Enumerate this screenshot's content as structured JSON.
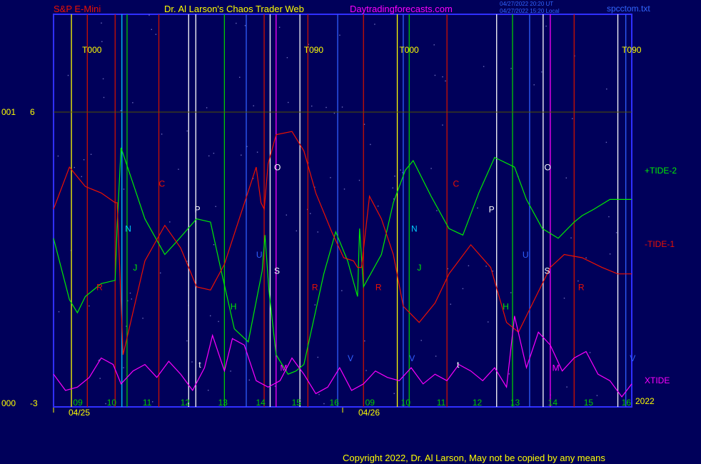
{
  "header": {
    "instrument": "S&P E-Mini",
    "title": "Dr. Al Larson's Chaos Trader Web",
    "website": "Daytradingforecasts.com",
    "timestamp_1": "04/27/2022 20:20 UT",
    "timestamp_2": "04/27/2022 15:20 Local",
    "filename": "spcctom.txt"
  },
  "footer": {
    "copyright": "Copyright 2022, Dr. Al Larson, May not be copied by any means"
  },
  "colors": {
    "background": "#00005a",
    "frame": "#3030ff",
    "tide2": "#00ee00",
    "tide1": "#ee1100",
    "xtide": "#ff00ff",
    "text_yellow": "#ffff00",
    "text_white": "#ffffff",
    "text_red": "#ee1100",
    "text_magenta": "#ff00ff"
  },
  "chart_data": {
    "type": "line",
    "y_axis_left": {
      "labels": [
        {
          "outer": "001",
          "inner": "6",
          "value": 6
        },
        {
          "outer": "000",
          "inner": "-3",
          "value": -3
        }
      ],
      "ylim": [
        -3,
        6
      ]
    },
    "x_axis": {
      "date_labels": [
        "04/25",
        "04/26"
      ],
      "year_label": "2022",
      "hour_labels": [
        {
          "label": "09",
          "x": 0.6
        },
        {
          "label": "10",
          "x": 1.45
        },
        {
          "label": "11",
          "x": 2.35
        },
        {
          "label": "12",
          "x": 3.3
        },
        {
          "label": "13",
          "x": 4.25
        },
        {
          "label": "14",
          "x": 5.2
        },
        {
          "label": "15",
          "x": 6.1
        },
        {
          "label": "16",
          "x": 7.05
        },
        {
          "label": "09",
          "x": 7.95
        },
        {
          "label": "10",
          "x": 8.85
        },
        {
          "label": "11",
          "x": 9.75
        },
        {
          "label": "12",
          "x": 10.65
        },
        {
          "label": "13",
          "x": 11.6
        },
        {
          "label": "14",
          "x": 12.55
        },
        {
          "label": "15",
          "x": 13.45
        },
        {
          "label": "16",
          "x": 14.4
        }
      ],
      "xlim": [
        0,
        14.55
      ]
    },
    "phase_labels": [
      {
        "label": "T000",
        "x": 0.72
      },
      {
        "label": "T090",
        "x": 6.3
      },
      {
        "label": "T000",
        "x": 8.7
      },
      {
        "label": "T090",
        "x": 14.3
      }
    ],
    "series": [
      {
        "name": "+TIDE-2",
        "x": [
          0,
          0.4,
          0.6,
          0.8,
          1.2,
          1.55,
          1.6,
          1.7,
          2.3,
          2.8,
          3.1,
          3.6,
          3.95,
          4.2,
          4.55,
          4.9,
          5.25,
          5.32,
          5.42,
          5.6,
          5.9,
          6.1,
          6.3,
          6.8,
          7.1,
          7.4,
          7.65,
          7.7,
          7.8,
          8.25,
          8.55,
          8.85,
          9.05,
          9.5,
          9.95,
          10.3,
          10.7,
          11.1,
          11.6,
          11.9,
          12.3,
          12.7,
          13.1,
          13.3,
          13.6,
          14.0,
          14.3,
          14.55
        ],
        "values": [
          2.1,
          0.2,
          -0.2,
          0.3,
          0.7,
          0.8,
          2.5,
          4.9,
          2.7,
          1.6,
          2.0,
          2.7,
          2.6,
          1.2,
          -0.7,
          -1.1,
          1.1,
          2.2,
          0.5,
          -1.5,
          -2.1,
          -2.0,
          -1.8,
          1.0,
          2.3,
          1.4,
          0.3,
          2.4,
          0.6,
          1.6,
          3.2,
          4.2,
          4.5,
          3.4,
          2.4,
          2.2,
          3.5,
          4.6,
          4.3,
          3.3,
          2.4,
          2.1,
          2.6,
          2.8,
          3.0,
          3.3,
          3.3,
          3.3
        ],
        "end_label": "+TIDE-2"
      },
      {
        "name": "-TIDE-1",
        "x": [
          0,
          0.4,
          0.8,
          1.2,
          1.55,
          1.6,
          1.75,
          2.3,
          2.8,
          3.2,
          3.6,
          3.95,
          4.3,
          4.7,
          5.1,
          5.22,
          5.3,
          5.4,
          5.6,
          6.0,
          6.3,
          6.6,
          7.0,
          7.3,
          7.55,
          7.65,
          7.75,
          7.95,
          8.25,
          8.55,
          8.8,
          9.2,
          9.6,
          9.95,
          10.5,
          11.0,
          11.4,
          11.7,
          12.1,
          12.5,
          12.85,
          13.3,
          13.8,
          14.2,
          14.55
        ],
        "values": [
          3.0,
          4.3,
          3.7,
          3.5,
          3.2,
          3.2,
          -1.5,
          1.4,
          2.5,
          1.8,
          0.6,
          0.5,
          1.3,
          2.8,
          4.3,
          3.2,
          3.0,
          4.4,
          5.3,
          5.4,
          4.8,
          3.5,
          2.3,
          1.5,
          1.4,
          1.2,
          1.2,
          3.4,
          2.7,
          1.6,
          0.0,
          -0.5,
          0.1,
          1.0,
          1.9,
          1.2,
          -0.5,
          -0.8,
          0.2,
          1.2,
          1.6,
          1.5,
          1.2,
          1.0,
          1.0
        ],
        "end_label": "-TIDE-1"
      },
      {
        "name": "XTIDE",
        "x": [
          0,
          0.3,
          0.6,
          0.9,
          1.2,
          1.5,
          1.7,
          2.0,
          2.3,
          2.6,
          2.9,
          3.2,
          3.5,
          3.8,
          4.0,
          4.3,
          4.5,
          4.8,
          5.1,
          5.4,
          5.7,
          6.0,
          6.3,
          6.6,
          6.9,
          7.2,
          7.5,
          7.8,
          8.1,
          8.4,
          8.7,
          9.0,
          9.3,
          9.6,
          9.9,
          10.2,
          10.5,
          10.8,
          11.1,
          11.4,
          11.6,
          11.9,
          12.2,
          12.5,
          12.8,
          13.1,
          13.4,
          13.7,
          14.0,
          14.3,
          14.55
        ],
        "values": [
          -2.1,
          -2.6,
          -2.5,
          -2.2,
          -1.6,
          -1.8,
          -2.4,
          -2.0,
          -1.8,
          -2.2,
          -1.7,
          -2.1,
          -2.6,
          -1.9,
          -0.9,
          -2.0,
          -1.0,
          -1.2,
          -2.3,
          -2.5,
          -2.3,
          -1.6,
          -2.1,
          -2.7,
          -2.5,
          -1.9,
          -2.6,
          -2.4,
          -2.0,
          -2.2,
          -2.3,
          -1.9,
          -2.4,
          -2.1,
          -2.3,
          -1.8,
          -2.0,
          -2.3,
          -1.9,
          -2.5,
          -0.3,
          -1.9,
          -0.8,
          -1.2,
          -2.0,
          -1.6,
          -1.4,
          -2.1,
          -2.3,
          -2.8,
          -2.4
        ],
        "end_label": "XTIDE"
      }
    ],
    "markers": [
      {
        "label": "R",
        "x": 1.08,
        "y": 0.5,
        "color": "#ee1100"
      },
      {
        "label": "N",
        "x": 1.8,
        "y": 2.3,
        "color": "#00ccff"
      },
      {
        "label": "J",
        "x": 2.0,
        "y": 1.1,
        "color": "#00ee00"
      },
      {
        "label": "C",
        "x": 2.65,
        "y": 3.7,
        "color": "#ee1100"
      },
      {
        "label": "P",
        "x": 3.55,
        "y": 2.9,
        "color": "#ffffff"
      },
      {
        "label": "H",
        "x": 4.45,
        "y": -0.1,
        "color": "#00ee00"
      },
      {
        "label": "U",
        "x": 5.1,
        "y": 1.5,
        "color": "#3060ff"
      },
      {
        "label": "S",
        "x": 5.55,
        "y": 1.0,
        "color": "#ffffff"
      },
      {
        "label": "O",
        "x": 5.55,
        "y": 4.2,
        "color": "#ffffff"
      },
      {
        "label": "M",
        "x": 5.7,
        "y": -2.0,
        "color": "#ff00ff"
      },
      {
        "label": "R",
        "x": 6.5,
        "y": 0.5,
        "color": "#ee1100"
      },
      {
        "label": "V",
        "x": 7.4,
        "y": -1.7,
        "color": "#3060ff"
      },
      {
        "label": "R",
        "x": 8.1,
        "y": 0.5,
        "color": "#ee1100"
      },
      {
        "label": "V",
        "x": 8.95,
        "y": -1.7,
        "color": "#3060ff"
      },
      {
        "label": "N",
        "x": 9.0,
        "y": 2.3,
        "color": "#00ccff"
      },
      {
        "label": "J",
        "x": 9.15,
        "y": 1.1,
        "color": "#00ee00"
      },
      {
        "label": "C",
        "x": 10.05,
        "y": 3.7,
        "color": "#ee1100"
      },
      {
        "label": "P",
        "x": 10.95,
        "y": 2.9,
        "color": "#ffffff"
      },
      {
        "label": "H",
        "x": 11.3,
        "y": -0.1,
        "color": "#00ee00"
      },
      {
        "label": "U",
        "x": 11.8,
        "y": 1.5,
        "color": "#3060ff"
      },
      {
        "label": "O",
        "x": 12.35,
        "y": 4.2,
        "color": "#ffffff"
      },
      {
        "label": "S",
        "x": 12.35,
        "y": 1.0,
        "color": "#ffffff"
      },
      {
        "label": "M",
        "x": 12.55,
        "y": -2.0,
        "color": "#ff00ff"
      },
      {
        "label": "R",
        "x": 13.2,
        "y": 0.5,
        "color": "#ee1100"
      },
      {
        "label": "V",
        "x": 14.5,
        "y": -1.7,
        "color": "#3060ff"
      },
      {
        "label": "t",
        "x": 3.65,
        "y": -1.9,
        "color": "#ffffff"
      },
      {
        "label": "t",
        "x": 10.15,
        "y": -1.9,
        "color": "#ffffff"
      }
    ],
    "vertical_lines": [
      {
        "x": 0.45,
        "color": "#ffff00"
      },
      {
        "x": 0.85,
        "color": "#cc1100"
      },
      {
        "x": 1.55,
        "color": "#cc1100"
      },
      {
        "x": 1.72,
        "color": "#00ccff"
      },
      {
        "x": 1.85,
        "color": "#00cc00"
      },
      {
        "x": 2.65,
        "color": "#cc1100"
      },
      {
        "x": 3.4,
        "color": "#ffffff"
      },
      {
        "x": 3.58,
        "color": "#ffffff"
      },
      {
        "x": 4.3,
        "color": "#00cc00"
      },
      {
        "x": 4.85,
        "color": "#3060ff"
      },
      {
        "x": 5.3,
        "color": "#cc1100"
      },
      {
        "x": 5.45,
        "color": "#ffffff"
      },
      {
        "x": 5.6,
        "color": "#ff00ff"
      },
      {
        "x": 6.2,
        "color": "#ffffff"
      },
      {
        "x": 6.4,
        "color": "#cc1100"
      },
      {
        "x": 7.15,
        "color": "#3060ff"
      },
      {
        "x": 7.8,
        "color": "#cc1100"
      },
      {
        "x": 8.65,
        "color": "#ffff00"
      },
      {
        "x": 8.8,
        "color": "#3060ff"
      },
      {
        "x": 8.95,
        "color": "#00cc00"
      },
      {
        "x": 9.9,
        "color": "#cc1100"
      },
      {
        "x": 11.15,
        "color": "#ffffff"
      },
      {
        "x": 11.55,
        "color": "#00cc00"
      },
      {
        "x": 11.98,
        "color": "#3060ff"
      },
      {
        "x": 12.32,
        "color": "#ffffff"
      },
      {
        "x": 12.5,
        "color": "#ff00ff"
      },
      {
        "x": 13.1,
        "color": "#cc1100"
      },
      {
        "x": 14.2,
        "color": "#ffffff"
      },
      {
        "x": 14.4,
        "color": "#3060ff"
      }
    ]
  }
}
